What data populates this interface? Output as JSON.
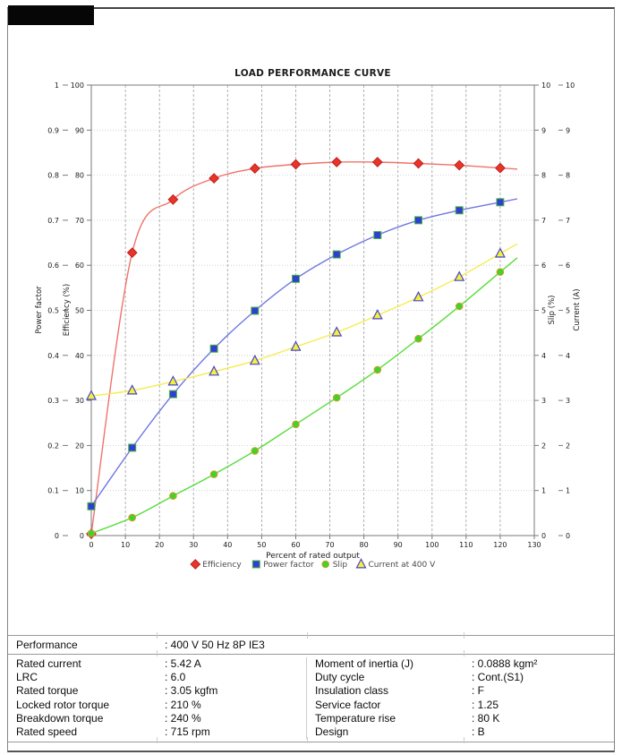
{
  "chart_data": {
    "type": "line",
    "title": "LOAD PERFORMANCE CURVE",
    "xlabel": "Percent of rated output",
    "xlim": [
      0,
      130
    ],
    "x_tick_step": 10,
    "grid": true,
    "legend_position": "bottom",
    "x": [
      0,
      12,
      24,
      36,
      48,
      60,
      72,
      84,
      96,
      108,
      120
    ],
    "axes": [
      {
        "label": "Power factor",
        "side": "left",
        "min": 0,
        "max": 1,
        "step": 0.1
      },
      {
        "label": "Efficiency (%)",
        "side": "left",
        "min": 0,
        "max": 100,
        "step": 10
      },
      {
        "label": "Slip (%)",
        "side": "right",
        "min": 0,
        "max": 10,
        "step": 1
      },
      {
        "label": "Current (A)",
        "side": "right",
        "min": 0,
        "max": 10,
        "step": 1
      }
    ],
    "series": [
      {
        "name": "Efficiency",
        "axis": "Efficiency (%)",
        "marker": "diamond",
        "line_color": "#f0736b",
        "marker_fill": "#e93528",
        "marker_edge": "#bb1e1e",
        "values": [
          0.4,
          62.8,
          74.6,
          79.3,
          81.5,
          82.4,
          82.9,
          82.9,
          82.6,
          82.2,
          81.6
        ]
      },
      {
        "name": "Power factor",
        "axis": "Power factor",
        "marker": "square",
        "line_color": "#6f77e0",
        "marker_fill": "#2f3fd3",
        "marker_edge": "#4db83c",
        "values": [
          0.065,
          0.195,
          0.314,
          0.415,
          0.499,
          0.57,
          0.624,
          0.667,
          0.7,
          0.722,
          0.74
        ]
      },
      {
        "name": "Slip",
        "axis": "Slip (%)",
        "marker": "circle",
        "line_color": "#57dd3a",
        "marker_fill": "#3fd428",
        "marker_edge": "#d89a2e",
        "values": [
          0.05,
          0.4,
          0.88,
          1.36,
          1.88,
          2.47,
          3.06,
          3.68,
          4.37,
          5.09,
          5.85
        ]
      },
      {
        "name": "Current at 400 V",
        "axis": "Current (A)",
        "marker": "triangle",
        "line_color": "#f6ec4e",
        "marker_fill": "#f7ef3c",
        "marker_edge": "#4646cc",
        "values": [
          3.1,
          3.22,
          3.42,
          3.64,
          3.88,
          4.19,
          4.51,
          4.89,
          5.29,
          5.74,
          6.26
        ]
      }
    ]
  },
  "logo": {
    "color": "#060606"
  },
  "table": {
    "header": {
      "label": "Performance",
      "value": ": 400 V 50 Hz 8P IE3"
    },
    "left_rows": [
      {
        "label": "Rated current",
        "value": ": 5.42 A"
      },
      {
        "label": "LRC",
        "value": ": 6.0"
      },
      {
        "label": "Rated torque",
        "value": ": 3.05 kgfm"
      },
      {
        "label": "Locked rotor torque",
        "value": ": 210 %"
      },
      {
        "label": "Breakdown torque",
        "value": ": 240 %"
      },
      {
        "label": "Rated speed",
        "value": ": 715 rpm"
      }
    ],
    "right_rows": [
      {
        "label": "Moment of inertia (J)",
        "value": ": 0.0888 kgm²"
      },
      {
        "label": "Duty cycle",
        "value": ": Cont.(S1)"
      },
      {
        "label": "Insulation class",
        "value": ": F"
      },
      {
        "label": "Service factor",
        "value": ": 1.25"
      },
      {
        "label": "Temperature rise",
        "value": ": 80 K"
      },
      {
        "label": "Design",
        "value": ": B"
      }
    ]
  }
}
